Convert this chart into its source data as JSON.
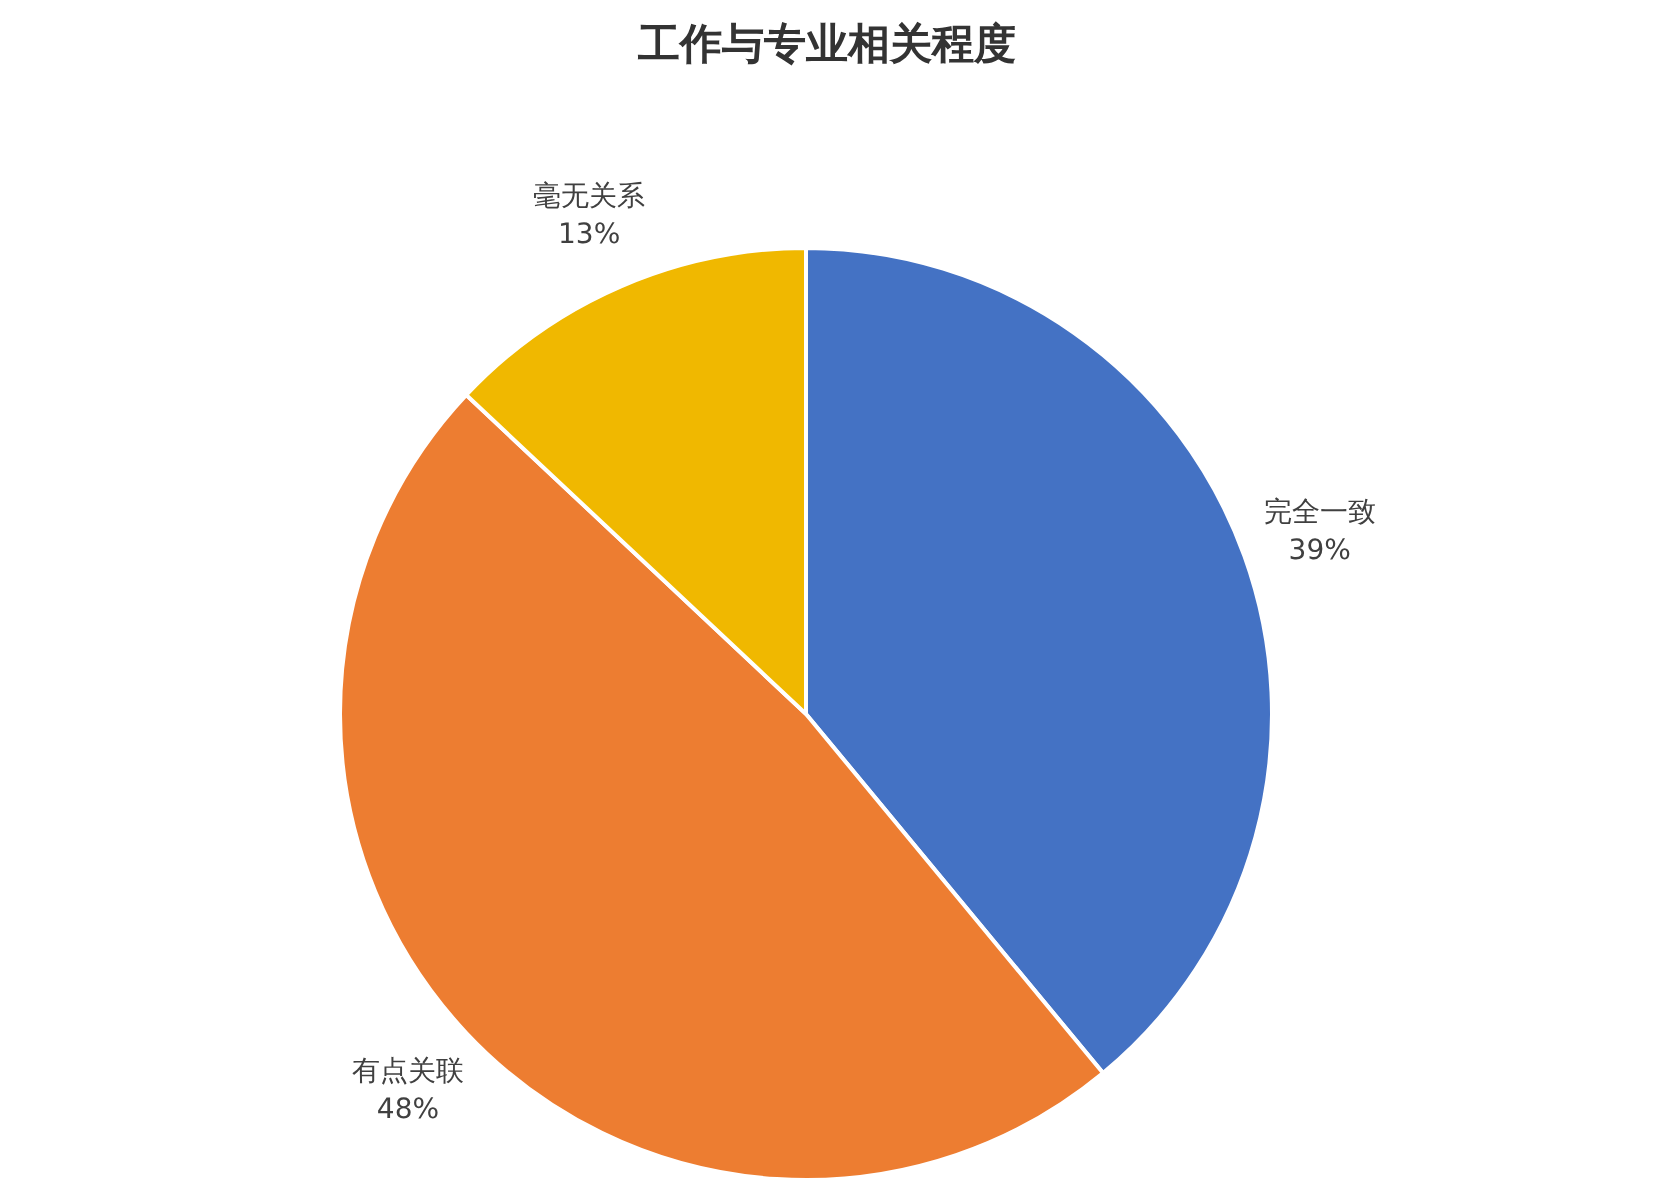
{
  "chart_data": {
    "type": "pie",
    "title": "工作与专业相关程度",
    "categories": [
      "完全一致",
      "有点关联",
      "毫无关系"
    ],
    "values": [
      39,
      48,
      13
    ],
    "colors": [
      "#4472c4",
      "#ed7d31",
      "#f0b800"
    ],
    "value_labels": [
      "39%",
      "48%",
      "13%"
    ],
    "legend": false
  }
}
